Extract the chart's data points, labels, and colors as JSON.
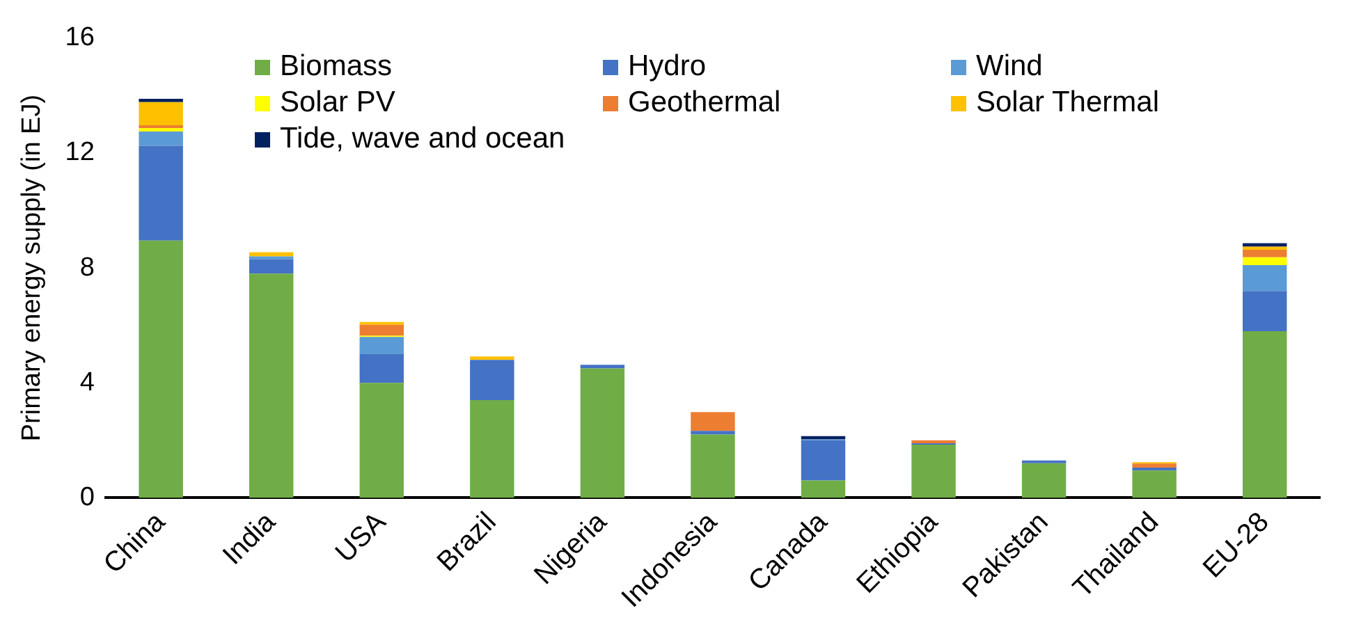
{
  "chart_data": {
    "type": "bar",
    "stacked": true,
    "ylabel": "Primary energy supply (in EJ)",
    "categories": [
      "China",
      "India",
      "USA",
      "Brazil",
      "Nigeria",
      "Indonesia",
      "Canada",
      "Ethiopia",
      "Pakistan",
      "Thailand",
      "EU-28"
    ],
    "ylim": [
      0,
      16
    ],
    "yticks": [
      0,
      4,
      8,
      12,
      16
    ],
    "grid": false,
    "legend": "top",
    "series": [
      {
        "name": "Biomass",
        "color": "#70ad47",
        "values": [
          8.95,
          7.8,
          4.0,
          3.4,
          4.5,
          2.2,
          0.6,
          1.85,
          1.2,
          0.95,
          5.8
        ]
      },
      {
        "name": "Hydro",
        "color": "#4472c4",
        "values": [
          3.3,
          0.5,
          1.0,
          1.4,
          0.13,
          0.13,
          1.4,
          0.05,
          0.1,
          0.1,
          1.4
        ]
      },
      {
        "name": "Wind",
        "color": "#5b9bd5",
        "values": [
          0.5,
          0.1,
          0.6,
          0,
          0,
          0,
          0.03,
          0,
          0,
          0,
          0.9
        ]
      },
      {
        "name": "Solar PV",
        "color": "#ffff00",
        "values": [
          0.12,
          0,
          0.04,
          0,
          0,
          0,
          0,
          0,
          0,
          0,
          0.27
        ]
      },
      {
        "name": "Geothermal",
        "color": "#ed7d31",
        "values": [
          0.1,
          0,
          0.38,
          0,
          0,
          0.65,
          0,
          0.1,
          0,
          0.14,
          0.26
        ]
      },
      {
        "name": "Solar Thermal",
        "color": "#ffc000",
        "values": [
          0.8,
          0.15,
          0.1,
          0.12,
          0,
          0,
          0,
          0,
          0,
          0.05,
          0.11
        ]
      },
      {
        "name": "Tide, wave and ocean",
        "color": "#002060",
        "values": [
          0.12,
          0,
          0,
          0,
          0,
          0,
          0.12,
          0,
          0,
          0,
          0.12
        ]
      }
    ]
  }
}
